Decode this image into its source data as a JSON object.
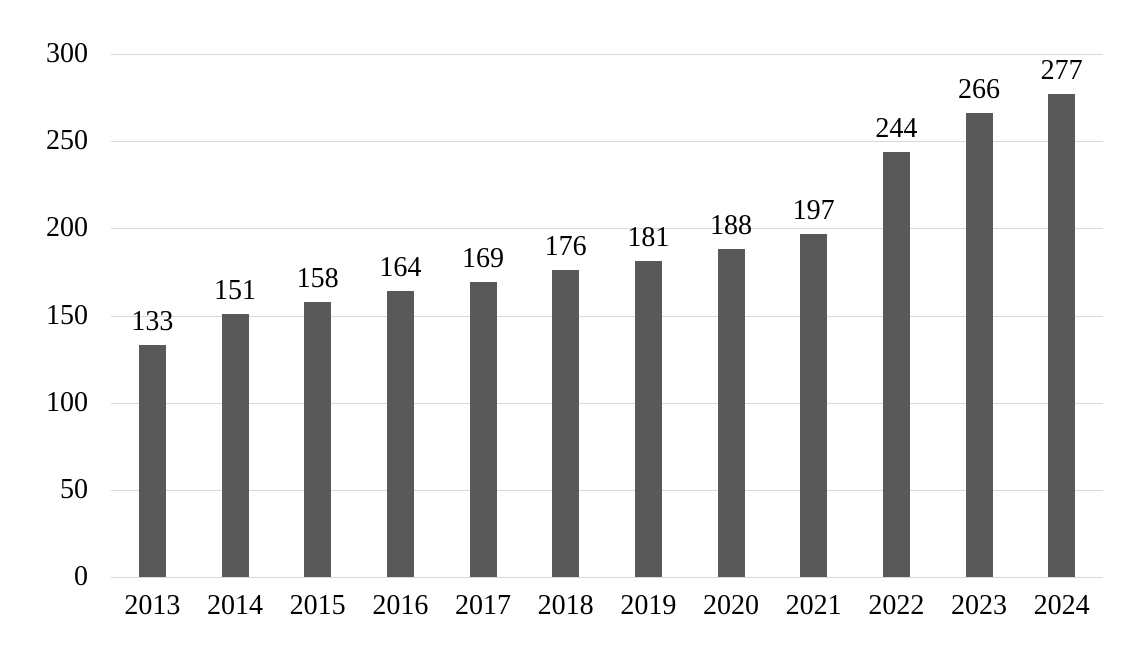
{
  "chart_data": {
    "type": "bar",
    "title": "",
    "xlabel": "",
    "ylabel": "",
    "categories": [
      "2013",
      "2014",
      "2015",
      "2016",
      "2017",
      "2018",
      "2019",
      "2020",
      "2021",
      "2022",
      "2023",
      "2024"
    ],
    "values": [
      133,
      151,
      158,
      164,
      169,
      176,
      181,
      188,
      197,
      244,
      266,
      277
    ],
    "data_labels_shown": true,
    "ylim": [
      0,
      300
    ],
    "yticks": [
      0,
      50,
      100,
      150,
      200,
      250,
      300
    ],
    "grid": true,
    "legend_position": "none",
    "colors": {
      "bar": "#595959",
      "gridline": "#d9d9d9",
      "axis_line": "#d9d9d9",
      "text": "#000000",
      "background": "#ffffff"
    }
  }
}
